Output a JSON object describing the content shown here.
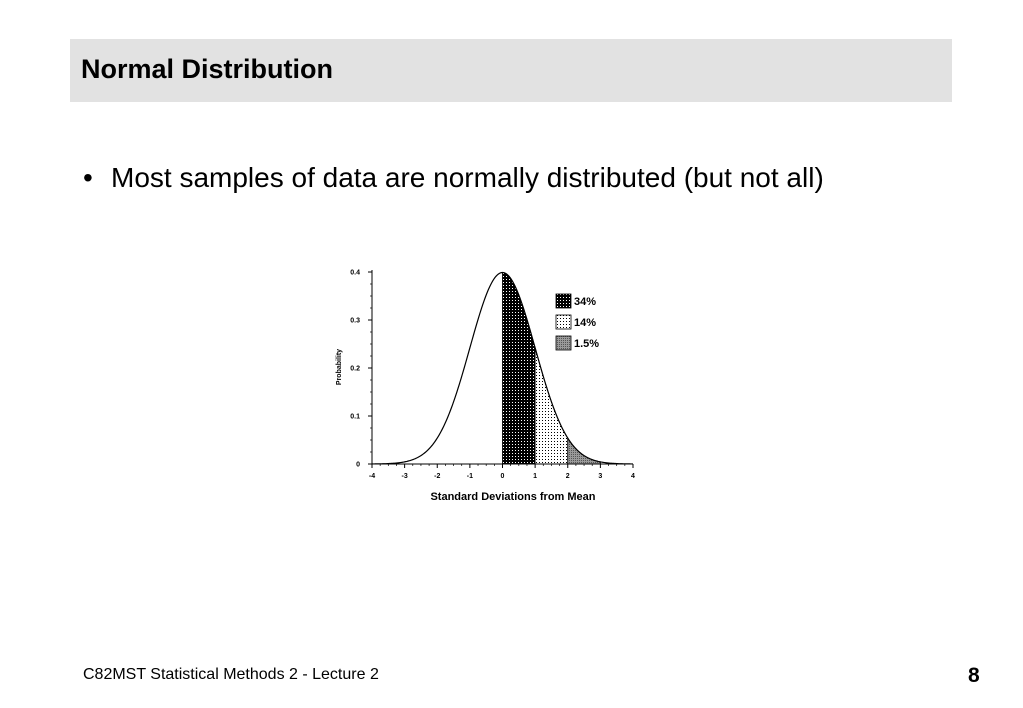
{
  "slide": {
    "title": "Normal Distribution",
    "bullet_glyph": "•",
    "bullet": "Most samples of data are normally distributed (but not all)",
    "footer": "C82MST Statistical Methods 2 - Lecture 2",
    "page_number": "8"
  },
  "chart_data": {
    "type": "area",
    "xlabel": "Standard Deviations from Mean",
    "ylabel": "Probability",
    "xlim": [
      -4,
      4
    ],
    "ylim": [
      0,
      0.4
    ],
    "x_ticks": [
      "-4",
      "-3",
      "-2",
      "-1",
      "0",
      "1",
      "2",
      "3",
      "4"
    ],
    "y_ticks": [
      "0",
      "0.1",
      "0.2",
      "0.3",
      "0.4"
    ],
    "curve": "standard normal density",
    "legend_placement": "top-right",
    "regions": [
      {
        "label": "34%",
        "from": 0,
        "to": 1,
        "pattern": "dark-dotted"
      },
      {
        "label": "14%",
        "from": 1,
        "to": 2,
        "pattern": "light-dotted"
      },
      {
        "label": "1.5%",
        "from": 2,
        "to": 3,
        "pattern": "gray"
      }
    ],
    "grid": false
  }
}
